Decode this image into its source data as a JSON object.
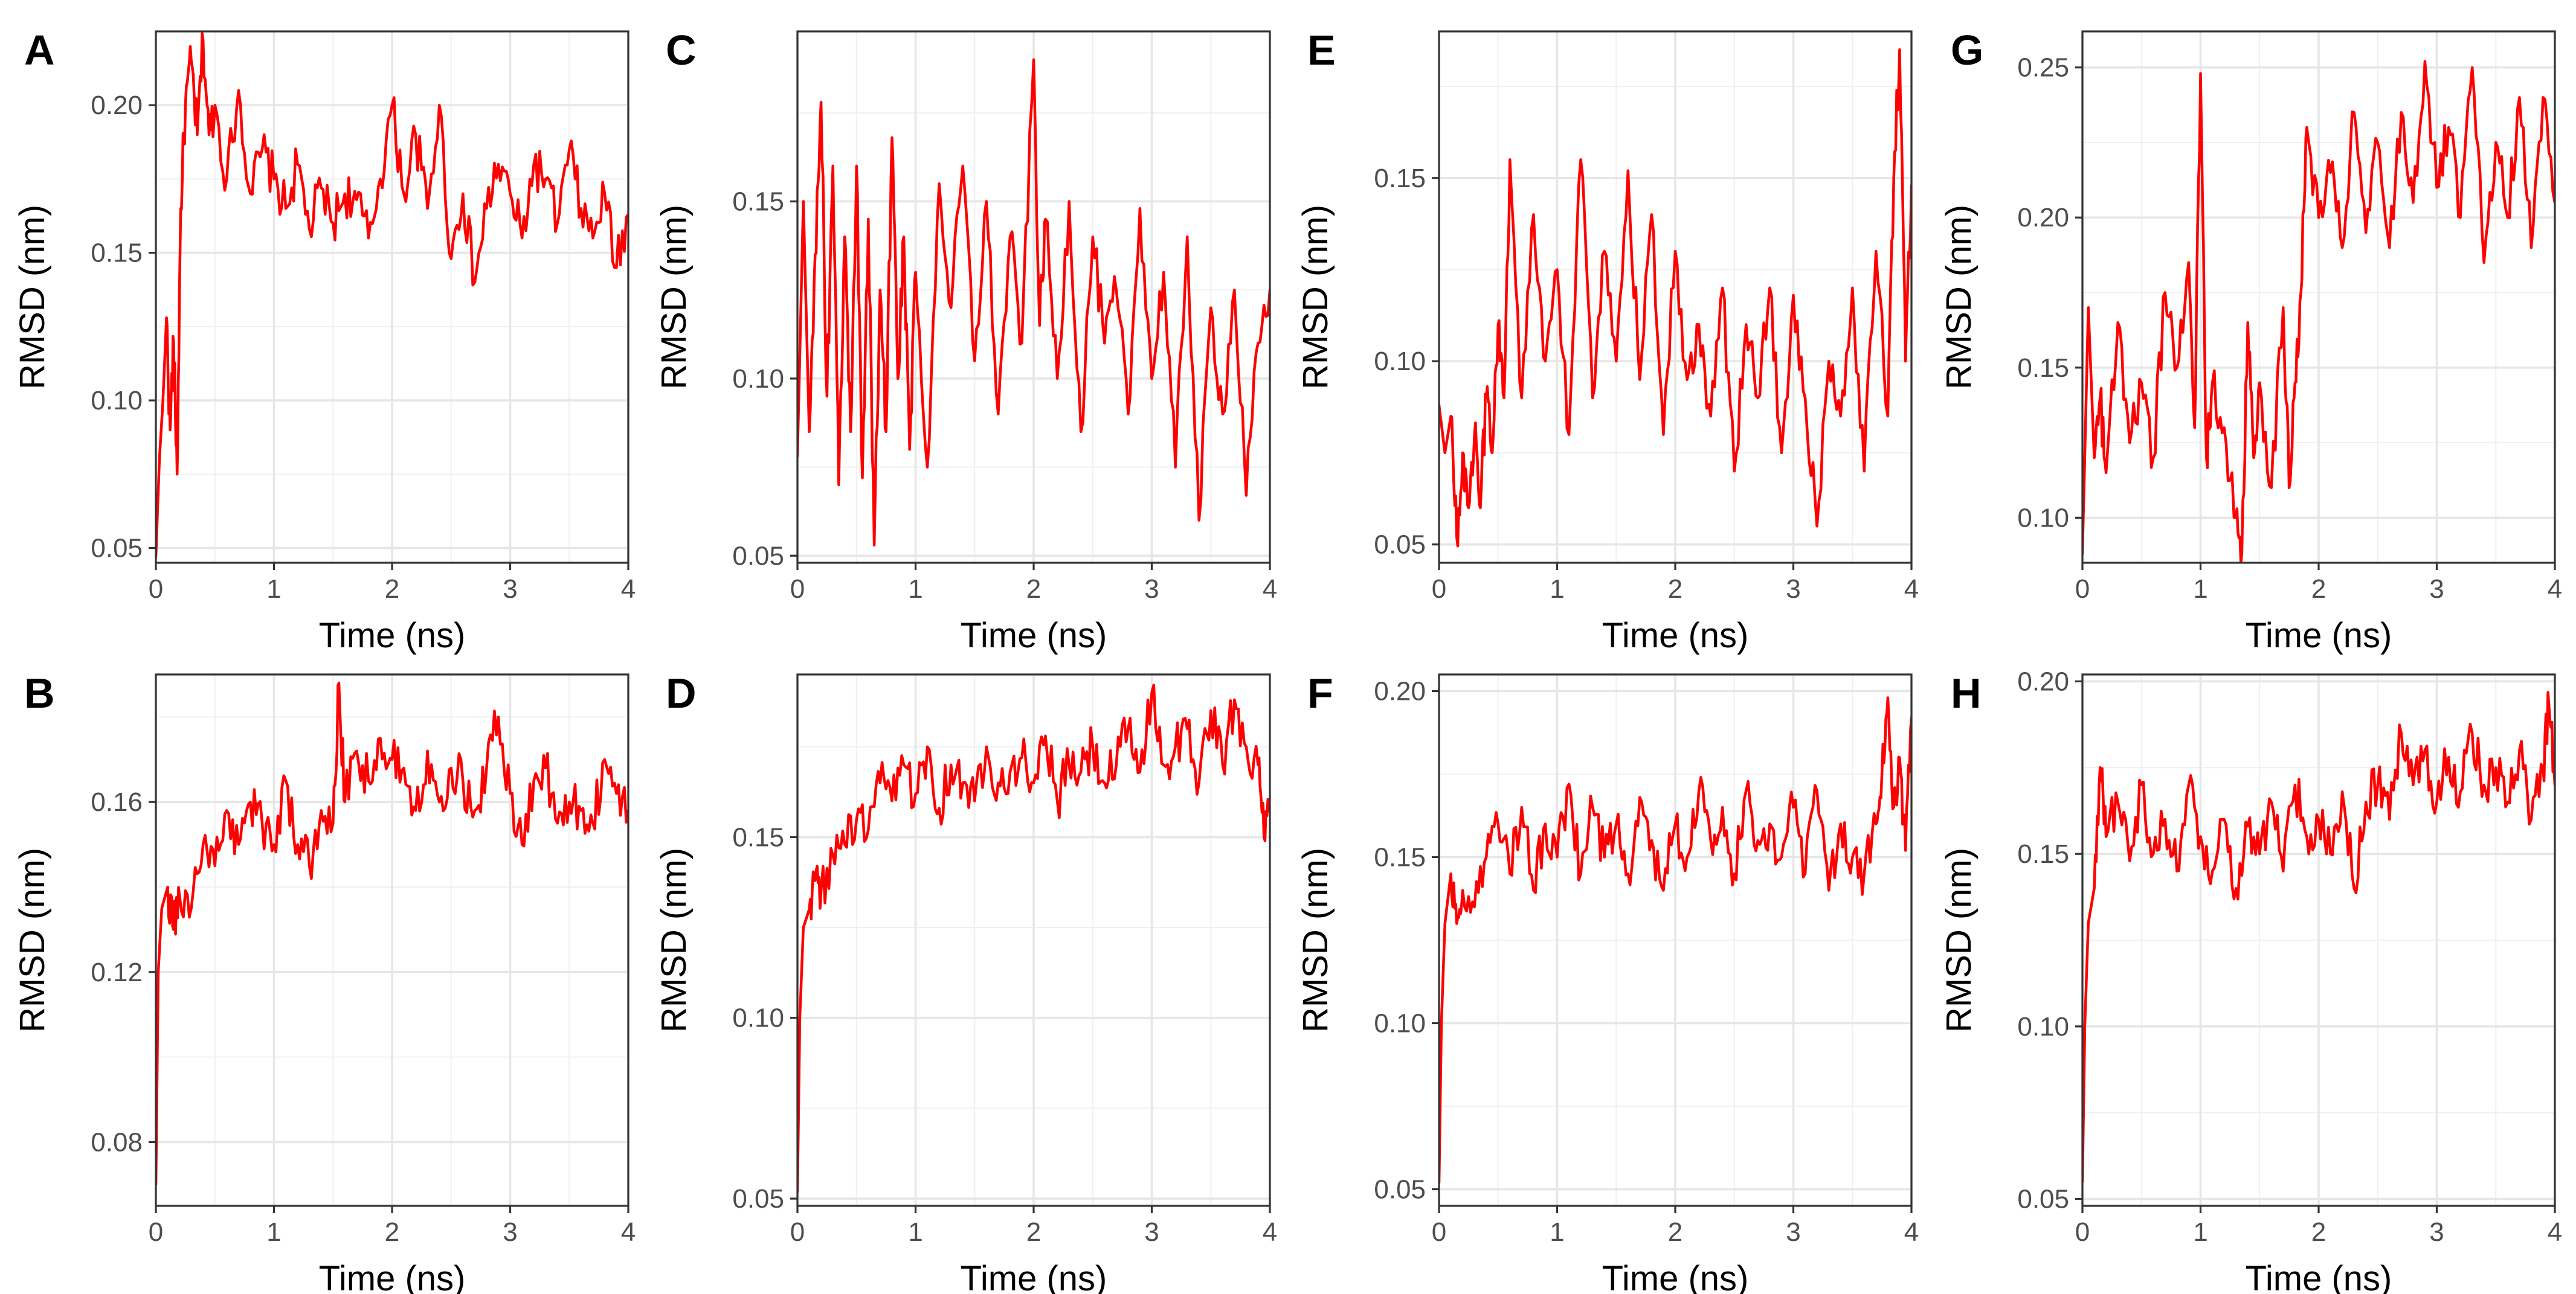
{
  "figure": {
    "colors": {
      "series": "#ff0000",
      "grid": "#e6e6e6",
      "border": "#333333",
      "tick_text": "#4d4d4d"
    }
  },
  "chart_data": [
    {
      "panel": "A",
      "type": "line",
      "xlabel": "Time (ns)",
      "ylabel": "RMSD (nm)",
      "xlim": [
        0,
        4
      ],
      "ylim": [
        0.045,
        0.225
      ],
      "xticks": [
        0,
        1,
        2,
        3,
        4
      ],
      "xtick_labels": [
        "0",
        "1",
        "2",
        "3",
        "4"
      ],
      "yticks": [
        0.05,
        0.1,
        0.15,
        0.2
      ],
      "ytick_labels": [
        "0.05",
        "0.10",
        "0.15",
        "0.20"
      ],
      "series": [
        {
          "name": "RMSD",
          "color": "#ff0000",
          "x": [
            0,
            0.03,
            0.06,
            0.09,
            0.12,
            0.15,
            0.18,
            0.21,
            0.25,
            0.3,
            0.35,
            0.4,
            0.45,
            0.5,
            0.6,
            0.7,
            0.8,
            0.9,
            1.0,
            1.1,
            1.2,
            1.3,
            1.4,
            1.5,
            1.6,
            1.7,
            1.8,
            1.9,
            2.0,
            2.1,
            2.2,
            2.3,
            2.4,
            2.5,
            2.6,
            2.7,
            2.8,
            2.9,
            3.0,
            3.1,
            3.2,
            3.3,
            3.4,
            3.5,
            3.6,
            3.7,
            3.8,
            3.9,
            4.0
          ],
          "y": [
            0.047,
            0.08,
            0.1,
            0.128,
            0.09,
            0.12,
            0.075,
            0.165,
            0.2,
            0.215,
            0.19,
            0.222,
            0.19,
            0.2,
            0.175,
            0.205,
            0.17,
            0.185,
            0.175,
            0.165,
            0.18,
            0.158,
            0.172,
            0.16,
            0.17,
            0.168,
            0.155,
            0.175,
            0.2,
            0.17,
            0.19,
            0.165,
            0.2,
            0.148,
            0.17,
            0.14,
            0.165,
            0.18,
            0.17,
            0.155,
            0.18,
            0.175,
            0.16,
            0.185,
            0.165,
            0.155,
            0.17,
            0.145,
            0.163
          ]
        }
      ]
    },
    {
      "panel": "B",
      "type": "line",
      "xlabel": "Time (ns)",
      "ylabel": "RMSD (nm)",
      "xlim": [
        0,
        4
      ],
      "ylim": [
        0.065,
        0.19
      ],
      "xticks": [
        0,
        1,
        2,
        3,
        4
      ],
      "xtick_labels": [
        "0",
        "1",
        "2",
        "3",
        "4"
      ],
      "yticks": [
        0.08,
        0.12,
        0.16
      ],
      "ytick_labels": [
        "0.08",
        "0.12",
        "0.16"
      ],
      "series": [
        {
          "name": "RMSD",
          "color": "#ff0000",
          "x": [
            0,
            0.02,
            0.05,
            0.1,
            0.15,
            0.2,
            0.3,
            0.4,
            0.5,
            0.6,
            0.7,
            0.8,
            0.9,
            1.0,
            1.1,
            1.2,
            1.3,
            1.4,
            1.5,
            1.55,
            1.6,
            1.7,
            1.8,
            1.9,
            2.0,
            2.1,
            2.2,
            2.3,
            2.4,
            2.5,
            2.6,
            2.7,
            2.8,
            2.9,
            3.0,
            3.1,
            3.2,
            3.3,
            3.4,
            3.5,
            3.6,
            3.7,
            3.8,
            3.9,
            4.0
          ],
          "y": [
            0.07,
            0.12,
            0.135,
            0.14,
            0.13,
            0.138,
            0.135,
            0.15,
            0.145,
            0.158,
            0.15,
            0.16,
            0.155,
            0.15,
            0.165,
            0.15,
            0.145,
            0.158,
            0.155,
            0.188,
            0.16,
            0.172,
            0.165,
            0.175,
            0.17,
            0.168,
            0.158,
            0.172,
            0.16,
            0.168,
            0.165,
            0.158,
            0.168,
            0.18,
            0.162,
            0.15,
            0.165,
            0.168,
            0.155,
            0.16,
            0.158,
            0.155,
            0.17,
            0.162,
            0.158
          ]
        }
      ]
    },
    {
      "panel": "C",
      "type": "line",
      "xlabel": "Time (ns)",
      "ylabel": "RMSD (nm)",
      "xlim": [
        0,
        4
      ],
      "ylim": [
        0.048,
        0.198
      ],
      "xticks": [
        0,
        1,
        2,
        3,
        4
      ],
      "xtick_labels": [
        "0",
        "1",
        "2",
        "3",
        "4"
      ],
      "yticks": [
        0.05,
        0.1,
        0.15
      ],
      "ytick_labels": [
        "0.05",
        "0.10",
        "0.15"
      ],
      "series": [
        {
          "name": "RMSD",
          "color": "#ff0000",
          "x": [
            0,
            0.05,
            0.1,
            0.15,
            0.2,
            0.25,
            0.3,
            0.35,
            0.4,
            0.45,
            0.5,
            0.55,
            0.6,
            0.65,
            0.7,
            0.75,
            0.8,
            0.85,
            0.9,
            0.95,
            1.0,
            1.1,
            1.2,
            1.3,
            1.4,
            1.5,
            1.6,
            1.7,
            1.8,
            1.9,
            2.0,
            2.05,
            2.1,
            2.2,
            2.3,
            2.4,
            2.5,
            2.6,
            2.7,
            2.8,
            2.9,
            3.0,
            3.1,
            3.2,
            3.3,
            3.4,
            3.5,
            3.6,
            3.7,
            3.8,
            3.9,
            4.0
          ],
          "y": [
            0.078,
            0.15,
            0.085,
            0.135,
            0.178,
            0.095,
            0.16,
            0.07,
            0.14,
            0.085,
            0.16,
            0.072,
            0.145,
            0.053,
            0.125,
            0.085,
            0.168,
            0.1,
            0.14,
            0.08,
            0.13,
            0.075,
            0.155,
            0.12,
            0.16,
            0.105,
            0.15,
            0.09,
            0.14,
            0.11,
            0.19,
            0.115,
            0.145,
            0.1,
            0.15,
            0.085,
            0.14,
            0.11,
            0.125,
            0.09,
            0.148,
            0.1,
            0.13,
            0.075,
            0.14,
            0.06,
            0.12,
            0.09,
            0.125,
            0.067,
            0.11,
            0.125
          ]
        }
      ]
    },
    {
      "panel": "D",
      "type": "line",
      "xlabel": "Time (ns)",
      "ylabel": "RMSD (nm)",
      "xlim": [
        0,
        4
      ],
      "ylim": [
        0.048,
        0.195
      ],
      "xticks": [
        0,
        1,
        2,
        3,
        4
      ],
      "xtick_labels": [
        "0",
        "1",
        "2",
        "3",
        "4"
      ],
      "yticks": [
        0.05,
        0.1,
        0.15
      ],
      "ytick_labels": [
        "0.05",
        "0.10",
        "0.15"
      ],
      "series": [
        {
          "name": "RMSD",
          "color": "#ff0000",
          "x": [
            0,
            0.02,
            0.05,
            0.1,
            0.15,
            0.2,
            0.3,
            0.4,
            0.5,
            0.6,
            0.7,
            0.8,
            0.9,
            1.0,
            1.1,
            1.2,
            1.3,
            1.4,
            1.5,
            1.6,
            1.7,
            1.8,
            1.9,
            2.0,
            2.1,
            2.2,
            2.3,
            2.4,
            2.5,
            2.6,
            2.7,
            2.8,
            2.9,
            3.0,
            3.1,
            3.2,
            3.3,
            3.4,
            3.5,
            3.6,
            3.7,
            3.8,
            3.9,
            3.95,
            4.0
          ],
          "y": [
            0.052,
            0.1,
            0.125,
            0.13,
            0.138,
            0.135,
            0.145,
            0.148,
            0.155,
            0.152,
            0.165,
            0.16,
            0.17,
            0.162,
            0.175,
            0.158,
            0.17,
            0.165,
            0.16,
            0.175,
            0.165,
            0.168,
            0.172,
            0.165,
            0.178,
            0.16,
            0.17,
            0.168,
            0.175,
            0.165,
            0.17,
            0.18,
            0.168,
            0.19,
            0.17,
            0.175,
            0.18,
            0.165,
            0.185,
            0.17,
            0.188,
            0.175,
            0.17,
            0.15,
            0.157
          ]
        }
      ]
    },
    {
      "panel": "E",
      "type": "line",
      "xlabel": "Time (ns)",
      "ylabel": "RMSD (nm)",
      "xlim": [
        0,
        4
      ],
      "ylim": [
        0.045,
        0.19
      ],
      "xticks": [
        0,
        1,
        2,
        3,
        4
      ],
      "xtick_labels": [
        "0",
        "1",
        "2",
        "3",
        "4"
      ],
      "yticks": [
        0.05,
        0.1,
        0.15
      ],
      "ytick_labels": [
        "0.05",
        "0.10",
        "0.15"
      ],
      "series": [
        {
          "name": "RMSD",
          "color": "#ff0000",
          "x": [
            0,
            0.05,
            0.1,
            0.15,
            0.2,
            0.25,
            0.3,
            0.35,
            0.4,
            0.45,
            0.5,
            0.55,
            0.6,
            0.7,
            0.8,
            0.9,
            1.0,
            1.1,
            1.2,
            1.3,
            1.4,
            1.5,
            1.6,
            1.7,
            1.8,
            1.9,
            2.0,
            2.1,
            2.2,
            2.3,
            2.4,
            2.5,
            2.6,
            2.7,
            2.8,
            2.9,
            3.0,
            3.1,
            3.2,
            3.3,
            3.4,
            3.5,
            3.6,
            3.7,
            3.8,
            3.85,
            3.9,
            3.95,
            4.0
          ],
          "y": [
            0.088,
            0.075,
            0.085,
            0.052,
            0.075,
            0.06,
            0.08,
            0.06,
            0.09,
            0.075,
            0.11,
            0.09,
            0.155,
            0.09,
            0.14,
            0.1,
            0.125,
            0.08,
            0.155,
            0.09,
            0.13,
            0.1,
            0.152,
            0.095,
            0.14,
            0.08,
            0.13,
            0.095,
            0.11,
            0.085,
            0.12,
            0.07,
            0.11,
            0.09,
            0.12,
            0.075,
            0.118,
            0.09,
            0.055,
            0.1,
            0.085,
            0.12,
            0.07,
            0.13,
            0.085,
            0.15,
            0.185,
            0.1,
            0.148
          ]
        }
      ]
    },
    {
      "panel": "F",
      "type": "line",
      "xlabel": "Time (ns)",
      "ylabel": "RMSD (nm)",
      "xlim": [
        0,
        4
      ],
      "ylim": [
        0.045,
        0.205
      ],
      "xticks": [
        0,
        1,
        2,
        3,
        4
      ],
      "xtick_labels": [
        "0",
        "1",
        "2",
        "3",
        "4"
      ],
      "yticks": [
        0.05,
        0.1,
        0.15,
        0.2
      ],
      "ytick_labels": [
        "0.05",
        "0.10",
        "0.15",
        "0.20"
      ],
      "series": [
        {
          "name": "RMSD",
          "color": "#ff0000",
          "x": [
            0,
            0.02,
            0.05,
            0.1,
            0.15,
            0.2,
            0.3,
            0.4,
            0.5,
            0.6,
            0.7,
            0.8,
            0.9,
            1.0,
            1.1,
            1.2,
            1.3,
            1.4,
            1.5,
            1.6,
            1.7,
            1.8,
            1.9,
            2.0,
            2.1,
            2.2,
            2.3,
            2.4,
            2.5,
            2.6,
            2.7,
            2.8,
            2.9,
            3.0,
            3.1,
            3.2,
            3.3,
            3.4,
            3.5,
            3.6,
            3.7,
            3.75,
            3.8,
            3.85,
            3.9,
            3.95,
            4.0
          ],
          "y": [
            0.052,
            0.1,
            0.13,
            0.145,
            0.13,
            0.14,
            0.135,
            0.15,
            0.16,
            0.145,
            0.165,
            0.14,
            0.16,
            0.15,
            0.172,
            0.145,
            0.165,
            0.15,
            0.16,
            0.145,
            0.168,
            0.155,
            0.14,
            0.16,
            0.15,
            0.17,
            0.155,
            0.165,
            0.145,
            0.17,
            0.155,
            0.16,
            0.15,
            0.165,
            0.145,
            0.17,
            0.14,
            0.16,
            0.15,
            0.145,
            0.16,
            0.175,
            0.198,
            0.165,
            0.18,
            0.152,
            0.192
          ]
        }
      ]
    },
    {
      "panel": "G",
      "type": "line",
      "xlabel": "Time (ns)",
      "ylabel": "RMSD (nm)",
      "xlim": [
        0,
        4
      ],
      "ylim": [
        0.085,
        0.262
      ],
      "xticks": [
        0,
        1,
        2,
        3,
        4
      ],
      "xtick_labels": [
        "0",
        "1",
        "2",
        "3",
        "4"
      ],
      "yticks": [
        0.1,
        0.15,
        0.2,
        0.25
      ],
      "ytick_labels": [
        "0.10",
        "0.15",
        "0.20",
        "0.25"
      ],
      "series": [
        {
          "name": "RMSD",
          "color": "#ff0000",
          "x": [
            0,
            0.05,
            0.1,
            0.15,
            0.2,
            0.3,
            0.4,
            0.5,
            0.6,
            0.7,
            0.8,
            0.9,
            0.95,
            1.0,
            1.05,
            1.1,
            1.2,
            1.3,
            1.35,
            1.4,
            1.45,
            1.5,
            1.6,
            1.7,
            1.75,
            1.8,
            1.85,
            1.9,
            2.0,
            2.1,
            2.2,
            2.3,
            2.4,
            2.5,
            2.6,
            2.7,
            2.8,
            2.9,
            3.0,
            3.1,
            3.2,
            3.3,
            3.4,
            3.5,
            3.6,
            3.7,
            3.8,
            3.9,
            4.0
          ],
          "y": [
            0.088,
            0.17,
            0.12,
            0.14,
            0.115,
            0.165,
            0.125,
            0.145,
            0.12,
            0.175,
            0.15,
            0.185,
            0.13,
            0.248,
            0.12,
            0.145,
            0.13,
            0.1,
            0.088,
            0.165,
            0.12,
            0.145,
            0.11,
            0.17,
            0.11,
            0.145,
            0.175,
            0.23,
            0.2,
            0.215,
            0.19,
            0.235,
            0.195,
            0.225,
            0.19,
            0.235,
            0.205,
            0.252,
            0.21,
            0.23,
            0.2,
            0.25,
            0.185,
            0.225,
            0.2,
            0.24,
            0.19,
            0.24,
            0.205
          ]
        }
      ]
    },
    {
      "panel": "H",
      "type": "line",
      "xlabel": "Time (ns)",
      "ylabel": "RMSD (nm)",
      "xlim": [
        0,
        4
      ],
      "ylim": [
        0.048,
        0.202
      ],
      "xticks": [
        0,
        1,
        2,
        3,
        4
      ],
      "xtick_labels": [
        "0",
        "1",
        "2",
        "3",
        "4"
      ],
      "yticks": [
        0.05,
        0.1,
        0.15,
        0.2
      ],
      "ytick_labels": [
        "0.05",
        "0.10",
        "0.15",
        "0.20"
      ],
      "series": [
        {
          "name": "RMSD",
          "color": "#ff0000",
          "x": [
            0,
            0.02,
            0.05,
            0.1,
            0.15,
            0.2,
            0.3,
            0.4,
            0.5,
            0.6,
            0.7,
            0.8,
            0.9,
            1.0,
            1.1,
            1.2,
            1.3,
            1.4,
            1.5,
            1.6,
            1.7,
            1.8,
            1.9,
            2.0,
            2.1,
            2.2,
            2.3,
            2.4,
            2.5,
            2.6,
            2.7,
            2.8,
            2.9,
            3.0,
            3.1,
            3.2,
            3.3,
            3.4,
            3.5,
            3.6,
            3.7,
            3.8,
            3.9,
            3.95,
            4.0
          ],
          "y": [
            0.055,
            0.1,
            0.13,
            0.14,
            0.175,
            0.155,
            0.165,
            0.148,
            0.17,
            0.15,
            0.16,
            0.145,
            0.17,
            0.155,
            0.145,
            0.16,
            0.14,
            0.158,
            0.15,
            0.165,
            0.145,
            0.17,
            0.155,
            0.16,
            0.15,
            0.168,
            0.14,
            0.165,
            0.17,
            0.16,
            0.185,
            0.17,
            0.18,
            0.165,
            0.178,
            0.168,
            0.185,
            0.17,
            0.175,
            0.165,
            0.18,
            0.16,
            0.175,
            0.193,
            0.17
          ]
        }
      ]
    }
  ]
}
